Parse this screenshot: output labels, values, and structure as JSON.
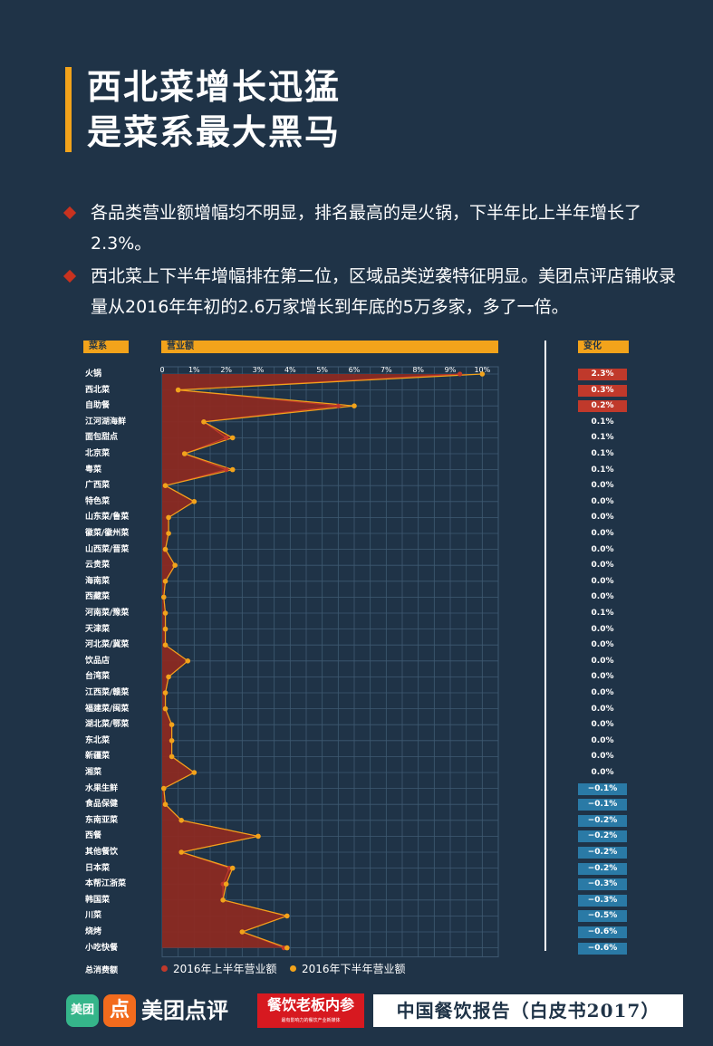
{
  "title": {
    "line1": "西北菜增长迅猛",
    "line2": "是菜系最大黑马"
  },
  "bullets": [
    "各品类营业额增幅均不明显，排名最高的是火锅，下半年比上半年增长了2.3%。",
    "西北菜上下半年增幅排在第二位，区域品类逆袭特征明显。美团点评店铺收录量从2016年年初的2.6万家增长到年底的5万多家，多了一倍。"
  ],
  "headers": {
    "category": "菜系",
    "revenue": "营业额",
    "change": "变化"
  },
  "total_label": "总消费额",
  "colors": {
    "background": "#1f3347",
    "accent": "#f2a31b",
    "area": "#8b2a22",
    "h1_line": "#c0392b",
    "h2_line": "#f2a31b",
    "positive": "#c0392b",
    "negative": "#2a7aa6"
  },
  "chart_data": {
    "type": "area",
    "x_axis": {
      "ticks": [
        "0",
        "1%",
        "2%",
        "3%",
        "4%",
        "5%",
        "6%",
        "7%",
        "8%",
        "9%",
        "10%"
      ],
      "range": [
        0,
        10.5
      ],
      "grid": true
    },
    "categories": [
      "火锅",
      "西北菜",
      "自助餐",
      "江河湖海鲜",
      "面包甜点",
      "北京菜",
      "粤菜",
      "广西菜",
      "特色菜",
      "山东菜/鲁菜",
      "徽菜/徽州菜",
      "山西菜/晋菜",
      "云贵菜",
      "海南菜",
      "西藏菜",
      "河南菜/豫菜",
      "天津菜",
      "河北菜/冀菜",
      "饮品店",
      "台湾菜",
      "江西菜/赣菜",
      "福建菜/闽菜",
      "湖北菜/鄂菜",
      "东北菜",
      "新疆菜",
      "湘菜",
      "水果生鲜",
      "食品保健",
      "东南亚菜",
      "西餐",
      "其他餐饮",
      "日本菜",
      "本帮江浙菜",
      "韩国菜",
      "川菜",
      "烧烤",
      "小吃快餐"
    ],
    "series": [
      {
        "name": "2016年上半年营业额",
        "values": [
          9.3,
          0.5,
          5.5,
          1.3,
          2.0,
          0.7,
          2.0,
          0.1,
          1.0,
          0.2,
          0.2,
          0.1,
          0.4,
          0.1,
          0.05,
          0.1,
          0.1,
          0.1,
          0.8,
          0.2,
          0.1,
          0.1,
          0.3,
          0.3,
          0.3,
          1.0,
          0.05,
          0.1,
          0.6,
          3.0,
          0.6,
          2.1,
          1.9,
          1.9,
          3.9,
          2.5,
          3.8
        ]
      },
      {
        "name": "2016年下半年营业额",
        "values": [
          10.0,
          0.5,
          6.0,
          1.3,
          2.2,
          0.7,
          2.2,
          0.1,
          1.0,
          0.2,
          0.2,
          0.1,
          0.4,
          0.1,
          0.05,
          0.1,
          0.1,
          0.1,
          0.8,
          0.2,
          0.1,
          0.1,
          0.3,
          0.3,
          0.3,
          1.0,
          0.05,
          0.1,
          0.6,
          3.0,
          0.6,
          2.2,
          2.0,
          1.9,
          3.9,
          2.5,
          3.9
        ]
      }
    ],
    "change_labels": [
      "2.3%",
      "0.3%",
      "0.2%",
      "0.1%",
      "0.1%",
      "0.1%",
      "0.1%",
      "0.0%",
      "0.0%",
      "0.0%",
      "0.0%",
      "0.0%",
      "0.0%",
      "0.0%",
      "0.0%",
      "0.1%",
      "0.0%",
      "0.0%",
      "0.0%",
      "0.0%",
      "0.0%",
      "0.0%",
      "0.0%",
      "0.0%",
      "0.0%",
      "0.0%",
      "−0.1%",
      "−0.1%",
      "−0.2%",
      "−0.2%",
      "−0.2%",
      "−0.2%",
      "−0.3%",
      "−0.3%",
      "−0.5%",
      "−0.6%",
      "−0.6%"
    ],
    "change_values": [
      2.3,
      0.3,
      0.2,
      0.1,
      0.1,
      0.1,
      0.1,
      0,
      0,
      0,
      0,
      0,
      0,
      0,
      0,
      0.1,
      0,
      0,
      0,
      0,
      0,
      0,
      0,
      0,
      0,
      0,
      -0.1,
      -0.1,
      -0.2,
      -0.2,
      -0.2,
      -0.2,
      -0.3,
      -0.3,
      -0.5,
      -0.6,
      -0.6
    ],
    "highlighted_changes": [
      0,
      1,
      2
    ]
  },
  "footer": {
    "logo_mt": "美团",
    "logo_dp": "点",
    "brand": "美团点评",
    "partner": "餐饮老板内参",
    "partner_sub": "最有影响力的餐饮产业新媒体",
    "report": "中国餐饮报告（白皮书2017）"
  }
}
